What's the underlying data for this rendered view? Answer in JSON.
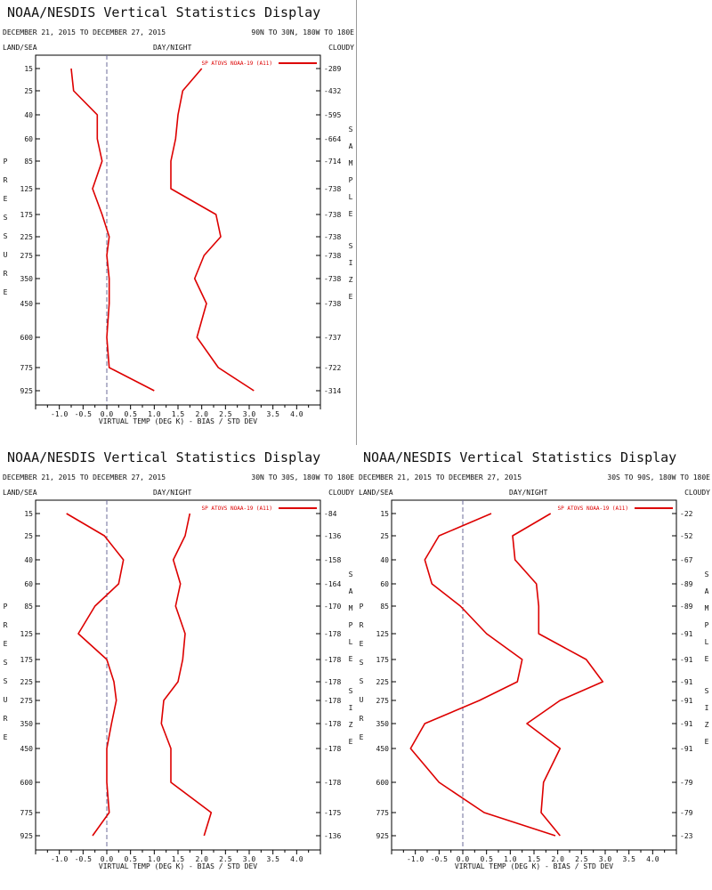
{
  "chart_data": [
    {
      "type": "line",
      "title": "NOAA/NESDIS Vertical Statistics Display",
      "dates": "DECEMBER 21, 2015 TO DECEMBER 27, 2015",
      "region": "90N TO 30N, 180W TO 180E",
      "corner_labels": {
        "left": "LAND/SEA",
        "middle": "DAY/NIGHT",
        "right": "CLOUDY"
      },
      "legend": {
        "label": "SP ATOVS NOAA-19 (A11)",
        "placement": "top-right"
      },
      "xlabel": "VIRTUAL TEMP (DEG K) - BIAS / STD DEV",
      "xlim": [
        -1.5,
        4.5
      ],
      "xticks": [
        "-1.0",
        "-0.5",
        "0.0",
        "0.5",
        "1.0",
        "1.5",
        "2.0",
        "2.5",
        "3.0",
        "3.5",
        "4.0"
      ],
      "ylabel": "PRESSURE",
      "y2label": "SAMPLE SIZE",
      "pressure": [
        "15",
        "25",
        "40",
        "60",
        "85",
        "125",
        "175",
        "225",
        "275",
        "350",
        "450",
        "600",
        "775",
        "925"
      ],
      "sample_size": [
        "289",
        "432",
        "595",
        "664",
        "714",
        "738",
        "738",
        "738",
        "738",
        "738",
        "738",
        "737",
        "722",
        "314"
      ],
      "series": [
        {
          "role": "bias",
          "values": [
            -0.75,
            -0.7,
            -0.2,
            -0.2,
            -0.1,
            -0.3,
            -0.1,
            0.05,
            0.0,
            0.05,
            0.05,
            0.0,
            0.05,
            1.0
          ]
        },
        {
          "role": "std_dev",
          "values": [
            2.0,
            1.6,
            1.5,
            1.45,
            1.35,
            1.35,
            2.3,
            2.4,
            2.05,
            1.85,
            2.1,
            1.9,
            2.35,
            3.1
          ]
        }
      ],
      "zero_line": "dashed"
    },
    {
      "type": "line",
      "title": "NOAA/NESDIS Vertical Statistics Display",
      "dates": "DECEMBER 21, 2015 TO DECEMBER 27, 2015",
      "region": "30N TO 30S, 180W TO 180E",
      "corner_labels": {
        "left": "LAND/SEA",
        "middle": "DAY/NIGHT",
        "right": "CLOUDY"
      },
      "legend": {
        "label": "SP ATOVS NOAA-19 (A11)",
        "placement": "top-right"
      },
      "xlabel": "VIRTUAL TEMP (DEG K) - BIAS / STD DEV",
      "xlim": [
        -1.5,
        4.5
      ],
      "xticks": [
        "-1.0",
        "-0.5",
        "0.0",
        "0.5",
        "1.0",
        "1.5",
        "2.0",
        "2.5",
        "3.0",
        "3.5",
        "4.0"
      ],
      "ylabel": "PRESSURE",
      "y2label": "SAMPLE SIZE",
      "pressure": [
        "15",
        "25",
        "40",
        "60",
        "85",
        "125",
        "175",
        "225",
        "275",
        "350",
        "450",
        "600",
        "775",
        "925"
      ],
      "sample_size": [
        "84",
        "136",
        "158",
        "164",
        "170",
        "178",
        "178",
        "178",
        "178",
        "178",
        "178",
        "178",
        "175",
        "136"
      ],
      "series": [
        {
          "role": "bias",
          "values": [
            -0.85,
            -0.05,
            0.35,
            0.25,
            -0.25,
            -0.6,
            0.0,
            0.15,
            0.2,
            0.1,
            0.0,
            0.0,
            0.05,
            -0.3
          ]
        },
        {
          "role": "std_dev",
          "values": [
            1.75,
            1.65,
            1.4,
            1.55,
            1.45,
            1.65,
            1.6,
            1.5,
            1.2,
            1.15,
            1.35,
            1.35,
            2.2,
            2.05
          ]
        }
      ],
      "zero_line": "dashed"
    },
    {
      "type": "line",
      "title": "NOAA/NESDIS Vertical Statistics Display",
      "dates": "DECEMBER 21, 2015 TO DECEMBER 27, 2015",
      "region": "30S TO 90S, 180W TO 180E",
      "corner_labels": {
        "left": "LAND/SEA",
        "middle": "DAY/NIGHT",
        "right": "CLOUDY"
      },
      "legend": {
        "label": "SP ATOVS NOAA-19 (A11)",
        "placement": "top-right"
      },
      "xlabel": "VIRTUAL TEMP (DEG K) - BIAS / STD DEV",
      "xlim": [
        -1.5,
        4.5
      ],
      "xticks": [
        "-1.0",
        "-0.5",
        "0.0",
        "0.5",
        "1.0",
        "1.5",
        "2.0",
        "2.5",
        "3.0",
        "3.5",
        "4.0"
      ],
      "ylabel": "PRESSURE",
      "y2label": "SAMPLE SIZE",
      "pressure": [
        "15",
        "25",
        "40",
        "60",
        "85",
        "125",
        "175",
        "225",
        "275",
        "350",
        "450",
        "600",
        "775",
        "925"
      ],
      "sample_size": [
        "22",
        "52",
        "67",
        "89",
        "89",
        "91",
        "91",
        "91",
        "91",
        "91",
        "91",
        "79",
        "79",
        "23"
      ],
      "series": [
        {
          "role": "bias",
          "values": [
            0.6,
            -0.5,
            -0.8,
            -0.65,
            -0.05,
            0.5,
            1.25,
            1.15,
            0.35,
            -0.8,
            -1.1,
            -0.5,
            0.45,
            1.95
          ]
        },
        {
          "role": "std_dev",
          "values": [
            1.85,
            1.05,
            1.1,
            1.55,
            1.6,
            1.6,
            2.6,
            2.95,
            2.05,
            1.35,
            2.05,
            1.7,
            1.65,
            2.05
          ]
        }
      ],
      "zero_line": "dashed"
    }
  ],
  "colors": {
    "series": "#dd0000",
    "axes": "#000000",
    "zero_line": "#6b6b9a",
    "divider": "#9a9a9a"
  }
}
